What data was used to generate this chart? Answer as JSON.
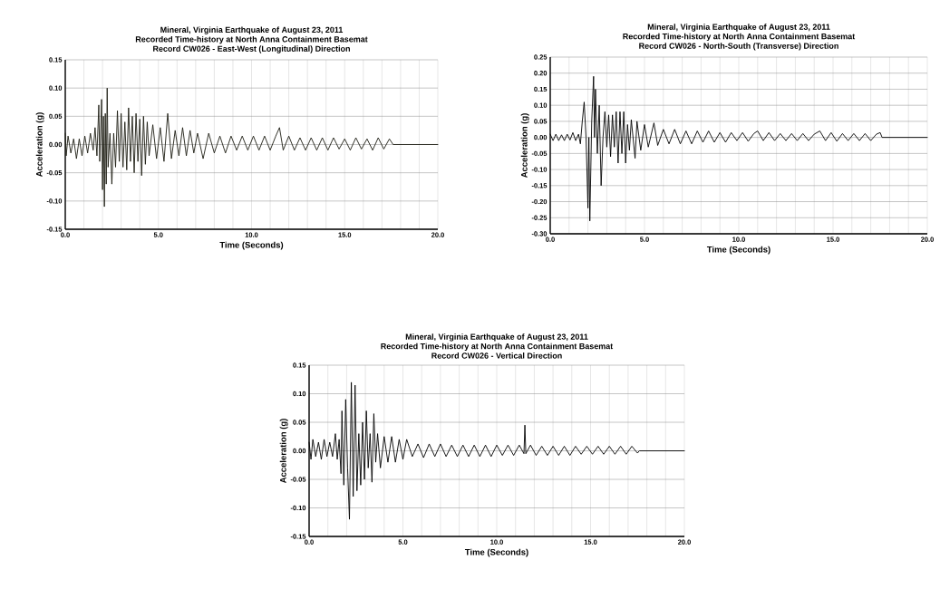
{
  "chart_data": [
    {
      "type": "line",
      "title": "Mineral, Virginia Earthquake of August 23, 2011",
      "subtitle": "Recorded Time-history at North Anna Containment Basemat",
      "annotations": [
        "Record CW026  - East-West (Longitudinal) Direction"
      ],
      "xlabel": "Time (Seconds)",
      "ylabel": "Acceleration (g)",
      "grid": true,
      "xlim": [
        0,
        20
      ],
      "ylim": [
        -0.15,
        0.15
      ],
      "xticks": [
        {
          "value": 0,
          "label": "0.0"
        },
        {
          "value": 5,
          "label": "5.0"
        },
        {
          "value": 10,
          "label": "10.0"
        },
        {
          "value": 15,
          "label": "15.0"
        },
        {
          "value": 20,
          "label": "20.0"
        }
      ],
      "yticks": [
        -0.15,
        {
          "value": -0.1,
          "label": "-0.10"
        },
        -0.05,
        {
          "value": 0,
          "label": "0.00"
        },
        0.05,
        {
          "value": 0.1,
          "label": "0.10"
        },
        0.15
      ],
      "series": [
        {
          "color": "#1c1c12",
          "x": [
            0,
            0.05,
            0.15,
            0.3,
            0.45,
            0.6,
            0.75,
            0.9,
            1.05,
            1.2,
            1.35,
            1.5,
            1.6,
            1.7,
            1.8,
            1.85,
            1.95,
            2.0,
            2.05,
            2.1,
            2.15,
            2.2,
            2.25,
            2.3,
            2.4,
            2.5,
            2.6,
            2.7,
            2.8,
            2.9,
            3.0,
            3.1,
            3.2,
            3.3,
            3.4,
            3.5,
            3.6,
            3.7,
            3.8,
            3.9,
            4.0,
            4.1,
            4.2,
            4.3,
            4.4,
            4.5,
            4.7,
            4.9,
            5.1,
            5.3,
            5.5,
            5.7,
            5.9,
            6.1,
            6.3,
            6.5,
            6.7,
            6.9,
            7.1,
            7.4,
            7.7,
            8.0,
            8.3,
            8.6,
            8.9,
            9.2,
            9.5,
            9.8,
            10.1,
            10.4,
            10.7,
            11.0,
            11.3,
            11.5,
            11.7,
            12.0,
            12.3,
            12.6,
            12.9,
            13.2,
            13.5,
            13.8,
            14.1,
            14.4,
            14.7,
            15.0,
            15.3,
            15.6,
            15.9,
            16.2,
            16.5,
            16.8,
            17.1,
            17.4,
            17.6,
            20
          ],
          "values": [
            0.02,
            -0.02,
            0.015,
            -0.015,
            0.01,
            -0.025,
            0.01,
            -0.02,
            0.015,
            -0.015,
            0.02,
            -0.01,
            0.03,
            -0.02,
            0.07,
            -0.03,
            0.08,
            -0.08,
            0.05,
            -0.11,
            0.055,
            -0.07,
            0.1,
            -0.04,
            0.02,
            -0.07,
            0.02,
            -0.04,
            0.06,
            -0.03,
            0.055,
            -0.04,
            0.04,
            -0.045,
            0.065,
            -0.03,
            0.05,
            -0.05,
            0.055,
            -0.03,
            0.045,
            -0.055,
            0.05,
            -0.035,
            0.04,
            -0.02,
            0.035,
            -0.025,
            0.03,
            -0.03,
            0.055,
            -0.025,
            0.025,
            -0.02,
            0.03,
            -0.02,
            0.025,
            -0.015,
            0.02,
            -0.025,
            0.02,
            -0.015,
            0.015,
            -0.015,
            0.015,
            -0.01,
            0.015,
            -0.01,
            0.015,
            -0.01,
            0.015,
            -0.01,
            0.015,
            0.03,
            -0.01,
            0.015,
            -0.01,
            0.012,
            -0.01,
            0.012,
            -0.01,
            0.012,
            -0.01,
            0.012,
            -0.008,
            0.01,
            -0.01,
            0.012,
            -0.008,
            0.01,
            -0.01,
            0.012,
            -0.008,
            0.01,
            0,
            0
          ]
        }
      ]
    },
    {
      "type": "line",
      "title": "Mineral, Virginia Earthquake of August 23, 2011",
      "subtitle": "Recorded Time-history at North Anna Containment Basemat",
      "annotations": [
        "Record CW026  - North-South (Transverse)  Direction"
      ],
      "xlabel": "Time (Seconds)",
      "ylabel": "Acceleration (g)",
      "grid": true,
      "xlim": [
        0,
        20
      ],
      "ylim": [
        -0.3,
        0.25
      ],
      "xticks": [
        {
          "value": 0,
          "label": "0.0"
        },
        {
          "value": 5,
          "label": "5.0"
        },
        {
          "value": 10,
          "label": "10.0"
        },
        {
          "value": 15,
          "label": "15.0"
        },
        {
          "value": 20,
          "label": "20.0"
        }
      ],
      "yticks": [
        {
          "value": -0.3,
          "label": "-0.30"
        },
        -0.25,
        {
          "value": -0.2,
          "label": "-0.20"
        },
        -0.15,
        {
          "value": -0.1,
          "label": "-0.10"
        },
        -0.05,
        {
          "value": 0,
          "label": "0.00"
        },
        0.05,
        {
          "value": 0.1,
          "label": "0.10"
        },
        0.15,
        {
          "value": 0.2,
          "label": "0.20"
        },
        0.25
      ],
      "series": [
        {
          "color": "#000000",
          "x": [
            0,
            0.15,
            0.3,
            0.45,
            0.6,
            0.75,
            0.9,
            1.05,
            1.2,
            1.35,
            1.5,
            1.6,
            1.7,
            1.8,
            1.9,
            2.0,
            2.05,
            2.1,
            2.2,
            2.3,
            2.35,
            2.4,
            2.5,
            2.6,
            2.7,
            2.8,
            2.9,
            3.0,
            3.1,
            3.2,
            3.3,
            3.4,
            3.5,
            3.6,
            3.7,
            3.8,
            3.9,
            4.0,
            4.1,
            4.2,
            4.3,
            4.5,
            4.6,
            4.8,
            5.0,
            5.2,
            5.5,
            5.7,
            6.0,
            6.3,
            6.6,
            6.9,
            7.2,
            7.5,
            7.8,
            8.1,
            8.4,
            8.7,
            9.0,
            9.3,
            9.6,
            9.9,
            10.2,
            10.5,
            10.8,
            11.0,
            11.3,
            11.6,
            11.9,
            12.2,
            12.5,
            12.8,
            13.1,
            13.4,
            13.7,
            14.0,
            14.3,
            14.6,
            14.9,
            15.2,
            15.5,
            15.8,
            16.1,
            16.4,
            16.7,
            17.0,
            17.3,
            17.5,
            17.6,
            20
          ],
          "values": [
            0.01,
            -0.01,
            0.01,
            -0.01,
            0.008,
            -0.01,
            0.01,
            -0.008,
            0.015,
            -0.01,
            0.01,
            -0.02,
            0.05,
            0.11,
            0.0,
            -0.22,
            0.0,
            -0.26,
            0.05,
            0.19,
            0.0,
            0.15,
            -0.05,
            0.1,
            -0.15,
            0.0,
            0.08,
            -0.03,
            0.07,
            -0.06,
            0.07,
            -0.03,
            0.08,
            -0.08,
            0.08,
            -0.05,
            0.08,
            -0.08,
            0.04,
            -0.04,
            0.055,
            -0.065,
            0.05,
            -0.04,
            0.04,
            -0.03,
            0.045,
            -0.025,
            0.025,
            -0.02,
            0.025,
            -0.02,
            0.02,
            -0.02,
            0.02,
            -0.015,
            0.02,
            -0.015,
            0.015,
            -0.015,
            0.015,
            -0.01,
            0.015,
            -0.012,
            0.012,
            0.02,
            -0.01,
            0.015,
            -0.01,
            0.012,
            -0.01,
            0.012,
            -0.01,
            0.012,
            -0.01,
            0.01,
            0.02,
            -0.01,
            0.015,
            -0.012,
            0.012,
            -0.01,
            0.012,
            -0.01,
            0.012,
            -0.01,
            0.01,
            0.015,
            0,
            0
          ]
        }
      ]
    },
    {
      "type": "line",
      "title": "Mineral, Virginia Earthquake of August 23, 2011",
      "subtitle": "Recorded Time-history at North Anna Containment Basemat",
      "annotations": [
        "Record CW026  - Vertical Direction"
      ],
      "xlabel": "Time (Seconds)",
      "ylabel": "Acceleration (g)",
      "grid": true,
      "xlim": [
        0,
        20
      ],
      "ylim": [
        -0.15,
        0.15
      ],
      "xticks": [
        {
          "value": 0,
          "label": "0.0"
        },
        {
          "value": 5,
          "label": "5.0"
        },
        {
          "value": 10,
          "label": "10.0"
        },
        {
          "value": 15,
          "label": "15.0"
        },
        {
          "value": 20,
          "label": "20.0"
        }
      ],
      "yticks": [
        -0.15,
        {
          "value": -0.1,
          "label": "-0.10"
        },
        -0.05,
        {
          "value": 0,
          "label": "0.00"
        },
        0.05,
        {
          "value": 0.1,
          "label": "0.10"
        },
        0.15
      ],
      "series": [
        {
          "color": "#000000",
          "x": [
            0,
            0.1,
            0.2,
            0.35,
            0.5,
            0.65,
            0.8,
            0.95,
            1.1,
            1.25,
            1.4,
            1.5,
            1.6,
            1.7,
            1.75,
            1.85,
            1.95,
            2.05,
            2.15,
            2.25,
            2.35,
            2.45,
            2.55,
            2.65,
            2.75,
            2.85,
            2.95,
            3.05,
            3.15,
            3.25,
            3.35,
            3.45,
            3.55,
            3.65,
            3.8,
            4.0,
            4.2,
            4.4,
            4.6,
            4.8,
            5.0,
            5.2,
            5.5,
            5.8,
            6.1,
            6.4,
            6.7,
            7.0,
            7.3,
            7.6,
            7.9,
            8.2,
            8.5,
            8.8,
            9.1,
            9.4,
            9.7,
            10.0,
            10.3,
            10.6,
            10.9,
            11.2,
            11.45,
            11.5,
            11.55,
            11.8,
            12.1,
            12.4,
            12.7,
            13.0,
            13.3,
            13.6,
            13.9,
            14.2,
            14.5,
            14.8,
            15.1,
            15.4,
            15.7,
            16.0,
            16.3,
            16.6,
            16.9,
            17.2,
            17.5,
            17.6,
            20
          ],
          "values": [
            0.015,
            -0.015,
            0.02,
            -0.01,
            0.015,
            -0.015,
            0.02,
            -0.01,
            0.015,
            -0.01,
            0.03,
            -0.015,
            0.02,
            -0.04,
            0.07,
            -0.06,
            0.09,
            -0.03,
            -0.12,
            0.12,
            -0.08,
            0.115,
            -0.07,
            0.03,
            -0.06,
            0.05,
            -0.05,
            0.07,
            -0.03,
            0.03,
            -0.055,
            0.065,
            -0.02,
            0.03,
            -0.03,
            0.025,
            -0.02,
            0.025,
            -0.02,
            0.02,
            -0.015,
            0.02,
            -0.01,
            0.012,
            -0.012,
            0.012,
            -0.01,
            0.012,
            -0.01,
            0.01,
            -0.01,
            0.01,
            -0.01,
            0.01,
            -0.01,
            0.01,
            -0.01,
            0.01,
            -0.008,
            0.01,
            -0.008,
            0.01,
            -0.005,
            0.045,
            -0.005,
            0.01,
            -0.008,
            0.008,
            -0.008,
            0.008,
            -0.008,
            0.008,
            -0.008,
            0.008,
            -0.006,
            0.008,
            -0.006,
            0.008,
            -0.006,
            0.008,
            -0.006,
            0.008,
            -0.006,
            0.008,
            -0.004,
            0,
            0
          ]
        }
      ]
    }
  ]
}
